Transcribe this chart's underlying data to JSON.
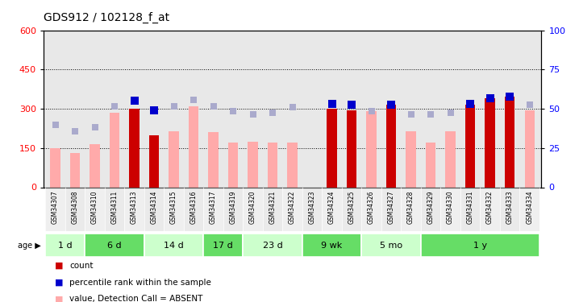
{
  "title": "GDS912 / 102128_f_at",
  "samples": [
    "GSM34307",
    "GSM34308",
    "GSM34310",
    "GSM34311",
    "GSM34313",
    "GSM34314",
    "GSM34315",
    "GSM34316",
    "GSM34317",
    "GSM34319",
    "GSM34320",
    "GSM34321",
    "GSM34322",
    "GSM34323",
    "GSM34324",
    "GSM34325",
    "GSM34326",
    "GSM34327",
    "GSM34328",
    "GSM34329",
    "GSM34330",
    "GSM34331",
    "GSM34332",
    "GSM34333",
    "GSM34334"
  ],
  "count_values": [
    null,
    null,
    null,
    null,
    300,
    200,
    null,
    null,
    null,
    null,
    null,
    null,
    null,
    null,
    300,
    295,
    null,
    315,
    null,
    null,
    null,
    315,
    340,
    345,
    null
  ],
  "absent_values": [
    150,
    130,
    165,
    285,
    null,
    null,
    215,
    310,
    210,
    170,
    175,
    170,
    170,
    null,
    null,
    null,
    290,
    null,
    215,
    170,
    215,
    null,
    null,
    null,
    295
  ],
  "rank_present": [
    null,
    null,
    null,
    null,
    330,
    295,
    null,
    null,
    null,
    null,
    null,
    null,
    null,
    null,
    320,
    315,
    null,
    315,
    null,
    null,
    null,
    320,
    340,
    345,
    null
  ],
  "rank_absent": [
    240,
    215,
    230,
    310,
    null,
    null,
    310,
    335,
    310,
    290,
    280,
    285,
    305,
    null,
    null,
    null,
    290,
    null,
    280,
    280,
    285,
    null,
    null,
    null,
    315
  ],
  "age_groups": [
    {
      "label": "1 d",
      "start": 0,
      "end": 2,
      "light": true
    },
    {
      "label": "6 d",
      "start": 2,
      "end": 5,
      "light": false
    },
    {
      "label": "14 d",
      "start": 5,
      "end": 8,
      "light": true
    },
    {
      "label": "17 d",
      "start": 8,
      "end": 10,
      "light": false
    },
    {
      "label": "23 d",
      "start": 10,
      "end": 13,
      "light": true
    },
    {
      "label": "9 wk",
      "start": 13,
      "end": 16,
      "light": false
    },
    {
      "label": "5 mo",
      "start": 16,
      "end": 19,
      "light": true
    },
    {
      "label": "1 y",
      "start": 19,
      "end": 25,
      "light": false
    }
  ],
  "age_color_light": "#ccffcc",
  "age_color_dark": "#66dd66",
  "ylim_left": [
    0,
    600
  ],
  "ylim_right": [
    0,
    100
  ],
  "yticks_left": [
    0,
    150,
    300,
    450,
    600
  ],
  "yticks_right": [
    0,
    25,
    50,
    75,
    100
  ],
  "grid_lines": [
    150,
    300,
    450
  ],
  "bar_width": 0.5,
  "count_color": "#cc0000",
  "absent_bar_color": "#ffaaaa",
  "rank_present_color": "#0000cc",
  "rank_absent_color": "#aaaacc",
  "plot_bg": "#e8e8e8",
  "label_bg": "#d0d0d0"
}
